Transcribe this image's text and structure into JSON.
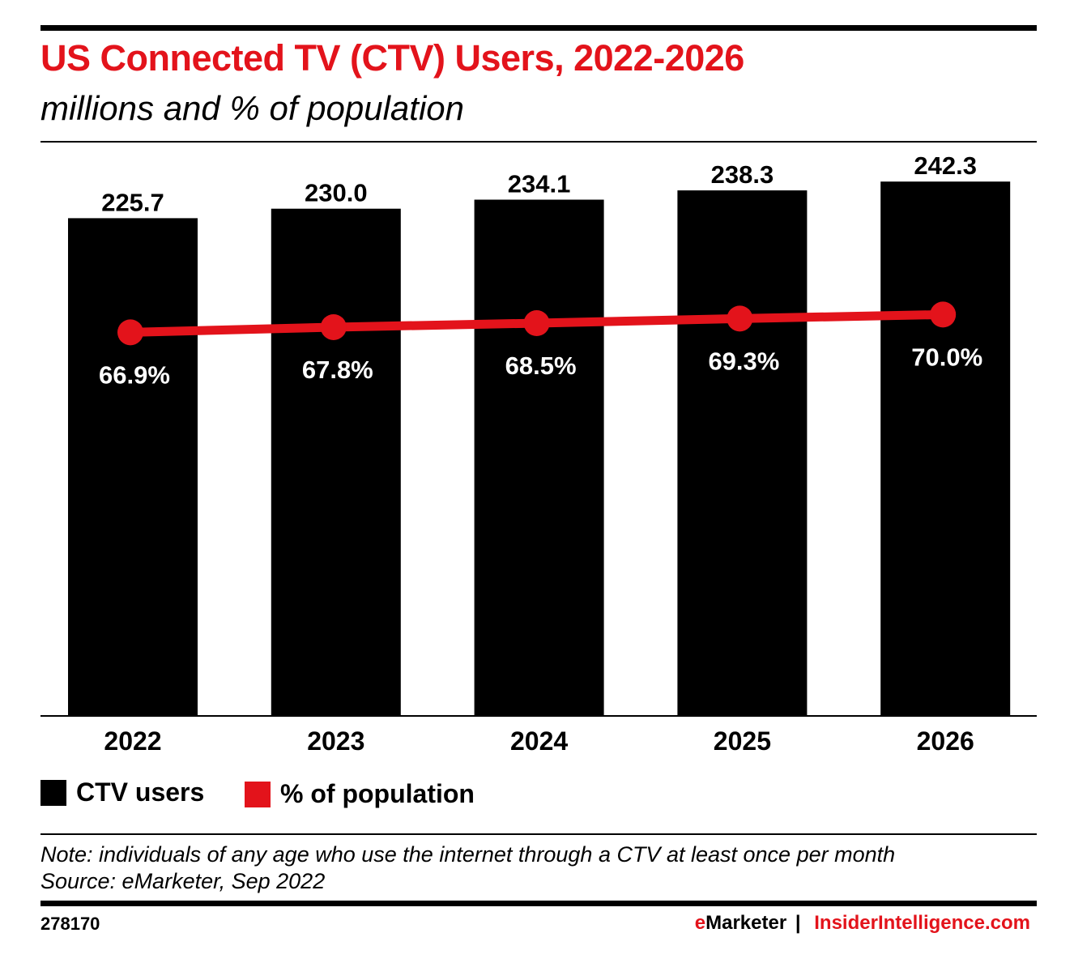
{
  "chart_data": {
    "type": "bar",
    "title": "US Connected TV (CTV) Users, 2022-2026",
    "subtitle": "millions and % of population",
    "categories": [
      "2022",
      "2023",
      "2024",
      "2025",
      "2026"
    ],
    "series": [
      {
        "name": "CTV users",
        "type": "bar",
        "values": [
          225.7,
          230.0,
          234.1,
          238.3,
          242.3
        ],
        "labels": [
          "225.7",
          "230.0",
          "234.1",
          "238.3",
          "242.3"
        ],
        "color": "#000000"
      },
      {
        "name": "% of population",
        "type": "line",
        "values": [
          66.9,
          67.8,
          68.5,
          69.3,
          70.0
        ],
        "labels": [
          "66.9%",
          "67.8%",
          "68.5%",
          "69.3%",
          "70.0%"
        ],
        "color": "#e3131b"
      }
    ],
    "ylim": [
      0,
      260
    ],
    "y2lim": [
      0,
      100
    ],
    "grid": false,
    "legend_position": "bottom-left"
  },
  "note": "Note: individuals of any age who use the internet through a CTV at least once per month",
  "source": "Source: eMarketer, Sep 2022",
  "footer": {
    "chart_id": "278170",
    "brand_e": "e",
    "brand_rest": "Marketer",
    "separator": "|",
    "site": "InsiderIntelligence.com"
  }
}
